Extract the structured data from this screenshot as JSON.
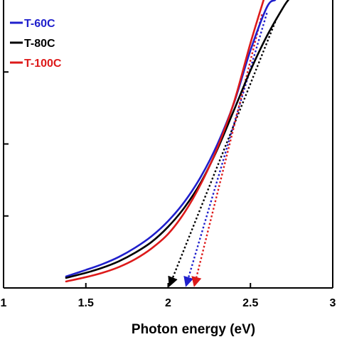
{
  "chart_data": {
    "type": "line",
    "title": "",
    "xlabel": "Photon energy (eV)",
    "ylabel": "",
    "xlim": [
      1.0,
      3.0
    ],
    "ylim": [
      0,
      4
    ],
    "x_ticks": [
      1,
      1.5,
      2,
      2.5,
      3
    ],
    "x_tick_labels": [
      "1",
      "1.5",
      "2",
      "2.5",
      "3"
    ],
    "y_ticks": [
      1,
      2,
      3
    ],
    "grid": false,
    "legend_position": "top-left",
    "series": [
      {
        "name": "T-60C",
        "color": "#1f1fcc",
        "x": [
          1.38,
          1.5,
          1.6,
          1.7,
          1.8,
          1.9,
          2.0,
          2.1,
          2.2,
          2.3,
          2.4,
          2.5,
          2.6,
          2.65
        ],
        "y": [
          0.16,
          0.25,
          0.33,
          0.43,
          0.56,
          0.72,
          0.93,
          1.2,
          1.55,
          2.0,
          2.57,
          3.3,
          3.9,
          4.0
        ],
        "tangent": {
          "x": [
            2.11,
            2.6
          ],
          "y": [
            0.0,
            3.82
          ]
        }
      },
      {
        "name": "T-80C",
        "color": "#000000",
        "x": [
          1.38,
          1.5,
          1.6,
          1.7,
          1.8,
          1.9,
          2.0,
          2.1,
          2.2,
          2.3,
          2.4,
          2.5,
          2.6,
          2.7,
          2.73
        ],
        "y": [
          0.14,
          0.21,
          0.28,
          0.37,
          0.49,
          0.64,
          0.85,
          1.12,
          1.47,
          1.93,
          2.47,
          3.02,
          3.5,
          3.9,
          4.0
        ],
        "tangent": {
          "x": [
            2.01,
            2.66
          ],
          "y": [
            0.0,
            3.75
          ]
        }
      },
      {
        "name": "T-100C",
        "color": "#dd1a1a",
        "x": [
          1.38,
          1.5,
          1.6,
          1.7,
          1.8,
          1.9,
          2.0,
          2.1,
          2.2,
          2.3,
          2.4,
          2.5,
          2.58
        ],
        "y": [
          0.09,
          0.15,
          0.21,
          0.29,
          0.4,
          0.55,
          0.75,
          1.05,
          1.45,
          1.95,
          2.58,
          3.4,
          4.0
        ],
        "tangent": {
          "x": [
            2.16,
            2.57
          ],
          "y": [
            0.0,
            3.8
          ]
        }
      }
    ]
  }
}
